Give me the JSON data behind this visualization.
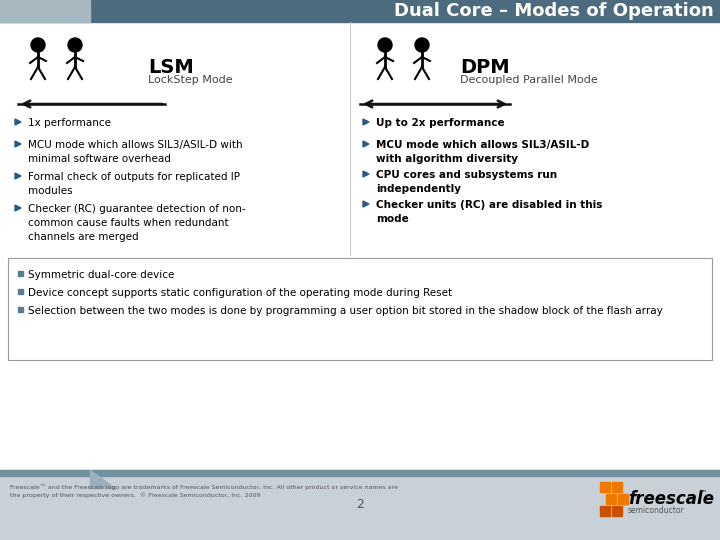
{
  "title": "Dual Core – Modes of Operation",
  "header_bar_color": "#4d6b7e",
  "header_bar_light": "#a8b8c0",
  "bg_color": "#ffffff",
  "slide_bg": "#e0e4e8",
  "lsm_title": "LSM",
  "lsm_subtitle": "LockStep Mode",
  "dpm_title": "DPM",
  "dpm_subtitle": "Decoupled Parallel Mode",
  "lsm_bullets": [
    "1x performance",
    "MCU mode which allows SIL3/ASIL-D with\nminimal software overhead",
    "Formal check of outputs for replicated IP\nmodules",
    "Checker (RC) guarantee detection of non-\ncommon cause faults when redundant\nchannels are merged"
  ],
  "dpm_bullets": [
    "Up to 2x performance",
    "MCU mode which allows SIL3/ASIL-D\nwith algorithm diversity",
    "CPU cores and subsystems run\nindependently",
    "Checker units (RC) are disabled in this\nmode"
  ],
  "bottom_bullets": [
    "Symmetric dual-core device",
    "Device concept supports static configuration of the operating mode during Reset",
    "Selection between the two modes is done by programming a user option bit stored in the shadow block of the flash array"
  ],
  "footer_text_left": "Freescale™ and the Freescale logo are trademarks of Freescale Semiconductor, Inc. All other product or service names are\nthe property of their respective owners.  © Freescale Semiconductor, Inc. 2009",
  "page_num": "2",
  "arrow_color": "#111111",
  "bullet_color": "#2a5a8a",
  "box_border_color": "#999999",
  "freescale_orange": "#f07800",
  "freescale_dark": "#c85000",
  "footer_stripe_color": "#7090a0",
  "footer_bg": "#c8d0d8"
}
